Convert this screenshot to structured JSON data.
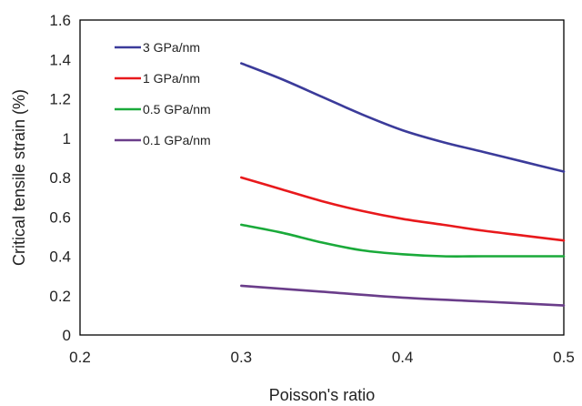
{
  "chart_data": {
    "type": "line",
    "title": "",
    "xlabel": "Poisson's ratio",
    "ylabel": "Critical tensile  strain (%)",
    "xlim": [
      0.2,
      0.5
    ],
    "ylim": [
      0,
      1.6
    ],
    "x_ticks": [
      0.2,
      0.3,
      0.4,
      0.5
    ],
    "x_tick_labels": [
      "0.2",
      "0.3",
      "0.4",
      "0.5"
    ],
    "y_ticks": [
      0,
      0.2,
      0.4,
      0.6,
      0.8,
      1,
      1.2,
      1.4,
      1.6
    ],
    "y_tick_labels": [
      "0",
      "0.2",
      "0.4",
      "0.6",
      "0.8",
      "1",
      "1.2",
      "1.4",
      "1.6"
    ],
    "grid": false,
    "legend_position": "top-left",
    "series": [
      {
        "name": "3 GPa/nm",
        "color": "#3b3b9a",
        "x": [
          0.3,
          0.325,
          0.35,
          0.375,
          0.4,
          0.425,
          0.45,
          0.475,
          0.5
        ],
        "y": [
          1.38,
          1.3,
          1.21,
          1.12,
          1.04,
          0.98,
          0.93,
          0.88,
          0.83
        ]
      },
      {
        "name": "1 GPa/nm",
        "color": "#e8191c",
        "x": [
          0.3,
          0.325,
          0.35,
          0.375,
          0.4,
          0.425,
          0.45,
          0.475,
          0.5
        ],
        "y": [
          0.8,
          0.74,
          0.68,
          0.63,
          0.59,
          0.56,
          0.53,
          0.505,
          0.48
        ]
      },
      {
        "name": "0.5 GPa/nm",
        "color": "#1aaa3a",
        "x": [
          0.3,
          0.325,
          0.35,
          0.375,
          0.4,
          0.425,
          0.45,
          0.475,
          0.5
        ],
        "y": [
          0.56,
          0.52,
          0.47,
          0.43,
          0.41,
          0.4,
          0.4,
          0.4,
          0.4
        ]
      },
      {
        "name": "0.1 GPa/nm",
        "color": "#6a3d8a",
        "x": [
          0.3,
          0.35,
          0.4,
          0.45,
          0.5
        ],
        "y": [
          0.25,
          0.22,
          0.19,
          0.17,
          0.15
        ]
      }
    ]
  }
}
